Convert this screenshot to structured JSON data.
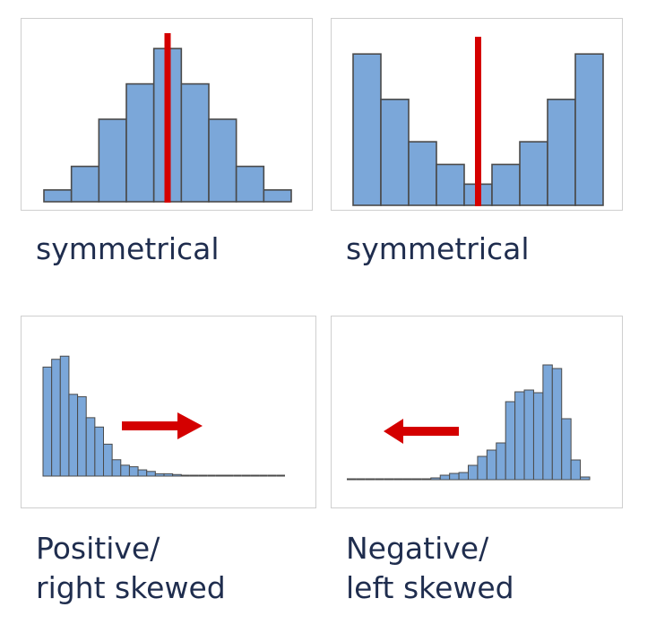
{
  "colors": {
    "bar_fill": "#7ba7d9",
    "bar_stroke": "#4a4a4a",
    "marker": "#d40000",
    "caption": "#1f2d4e",
    "panel_border": "#cfcfcf"
  },
  "chart_data": [
    {
      "type": "bar",
      "values": [
        1,
        3,
        7,
        10,
        13,
        10,
        7,
        3,
        1
      ],
      "ylim": [
        0,
        14
      ],
      "mean_line": 4.5,
      "caption": [
        "symmetrical"
      ]
    },
    {
      "type": "bar",
      "values": [
        10,
        7,
        4.2,
        2.7,
        1.4,
        2.7,
        4.2,
        7,
        10
      ],
      "ylim": [
        0,
        10.9
      ],
      "mean_line": 4.5,
      "caption": [
        "symmetrical"
      ]
    },
    {
      "type": "bar",
      "values": [
        14,
        15,
        15.4,
        10.5,
        10.2,
        7.5,
        6.3,
        4.1,
        2.1,
        1.4,
        1.2,
        0.8,
        0.6,
        0.3,
        0.3,
        0.2,
        0.1,
        0.1,
        0,
        0.05,
        0.05,
        0.05,
        0.05,
        0,
        0.05,
        0.05,
        0.05,
        0.05
      ],
      "ylim": [
        0,
        17.5
      ],
      "arrow": "right",
      "caption": [
        "Positive/",
        "right skewed"
      ]
    },
    {
      "type": "bar",
      "values": [
        0.03,
        0.03,
        0.03,
        0,
        0.03,
        0.03,
        0.03,
        0.05,
        0.08,
        0.2,
        0.5,
        0.7,
        0.8,
        1.6,
        2.6,
        3.3,
        4.1,
        8.7,
        9.8,
        10,
        9.7,
        12.8,
        12.4,
        6.8,
        2.2,
        0.3
      ],
      "ylim": [
        0,
        15
      ],
      "arrow": "left",
      "caption": [
        "Negative/",
        "left skewed"
      ]
    }
  ]
}
